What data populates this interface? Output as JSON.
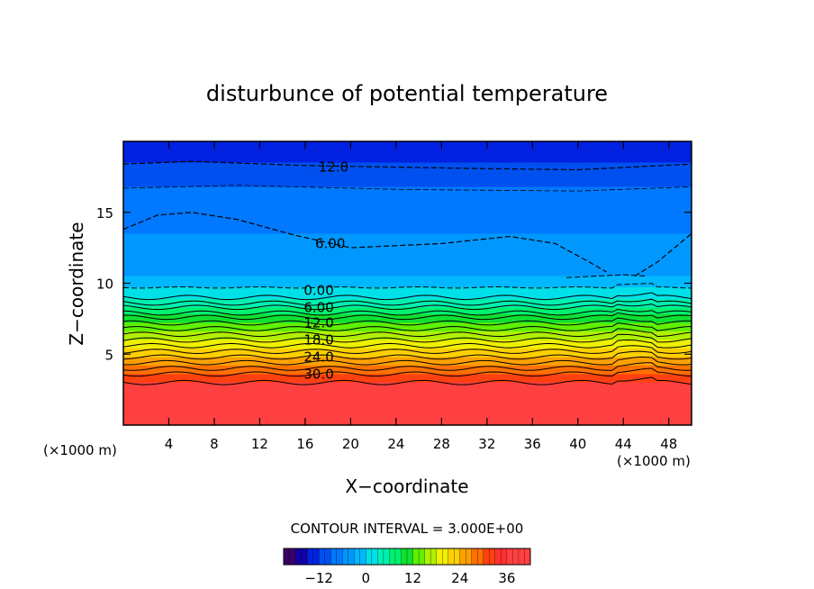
{
  "chart_data": {
    "type": "heatmap",
    "title": "disturbunce of potential temperature",
    "xlabel": "X−coordinate",
    "ylabel": "Z−coordinate",
    "x_unit": "(×1000 m)",
    "y_unit": "(×1000 m)",
    "xlim": [
      0,
      50
    ],
    "ylim": [
      0,
      20
    ],
    "x_ticks": [
      4,
      8,
      12,
      16,
      20,
      24,
      28,
      32,
      36,
      40,
      44,
      48
    ],
    "y_ticks": [
      5,
      10,
      15
    ],
    "contour_interval_text": "CONTOUR INTERVAL = 3.000E+00",
    "contour_labels": [
      {
        "text": "12.0",
        "x": 18.5,
        "z": 18.2
      },
      {
        "text": "6.00",
        "x": 18.2,
        "z": 12.8
      },
      {
        "text": "0.00",
        "x": 17.2,
        "z": 9.5
      },
      {
        "text": "6.00",
        "x": 17.2,
        "z": 8.3
      },
      {
        "text": "12.0",
        "x": 17.2,
        "z": 7.2
      },
      {
        "text": "18.0",
        "x": 17.2,
        "z": 6.0
      },
      {
        "text": "24.0",
        "x": 17.2,
        "z": 4.8
      },
      {
        "text": "30.0",
        "x": 17.2,
        "z": 3.6
      }
    ],
    "colorbar": {
      "min": -21,
      "max": 42,
      "interval": 3,
      "tick_labels": [
        "−12",
        "0",
        "12",
        "24",
        "36"
      ],
      "tick_values": [
        -12,
        0,
        12,
        24,
        36
      ]
    },
    "color_stops": [
      {
        "v": -21,
        "c": "#3a006a"
      },
      {
        "v": -18,
        "c": "#1200a6"
      },
      {
        "v": -15,
        "c": "#0022e0"
      },
      {
        "v": -12,
        "c": "#0050f0"
      },
      {
        "v": -9,
        "c": "#0078ff"
      },
      {
        "v": -6,
        "c": "#0098ff"
      },
      {
        "v": -3,
        "c": "#00b8ff"
      },
      {
        "v": 0,
        "c": "#00e0e8"
      },
      {
        "v": 3,
        "c": "#00f0b0"
      },
      {
        "v": 6,
        "c": "#00f070"
      },
      {
        "v": 9,
        "c": "#10e030"
      },
      {
        "v": 12,
        "c": "#60f000"
      },
      {
        "v": 15,
        "c": "#b0f000"
      },
      {
        "v": 18,
        "c": "#f0f000"
      },
      {
        "v": 21,
        "c": "#ffd000"
      },
      {
        "v": 24,
        "c": "#ffa000"
      },
      {
        "v": 27,
        "c": "#ff7000"
      },
      {
        "v": 30,
        "c": "#ff4010"
      },
      {
        "v": 33,
        "c": "#ff3030"
      },
      {
        "v": 36,
        "c": "#ff4040"
      },
      {
        "v": 42,
        "c": "#ffb0b0"
      }
    ],
    "grid": false
  }
}
